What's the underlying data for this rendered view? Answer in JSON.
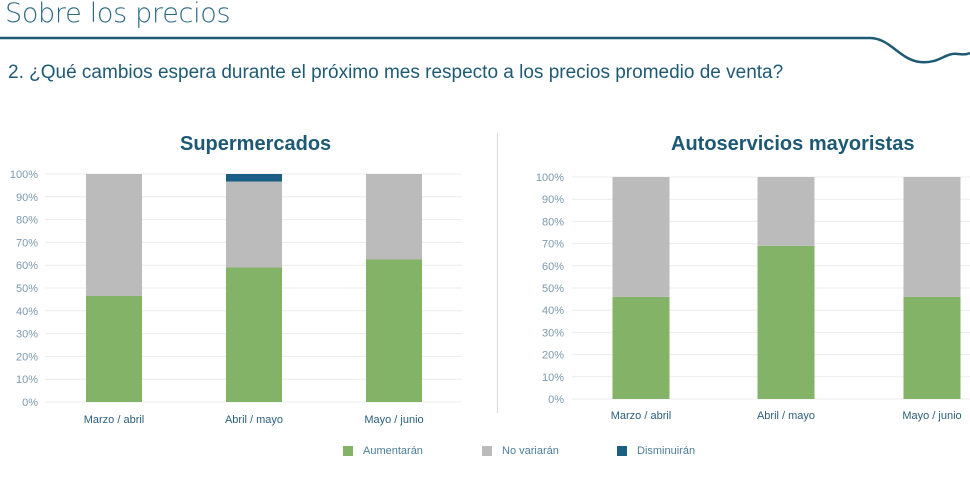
{
  "header": {
    "title": "Sobre los precios",
    "question": "2. ¿Qué cambios espera durante el próximo mes respecto a los precios promedio de venta?"
  },
  "colors": {
    "aumentaran": "#82b366",
    "no_variaran": "#bbbbbb",
    "disminuiran": "#1b5e86",
    "accent": "#1e5a73"
  },
  "legend": [
    {
      "label": "Aumentarán",
      "color": "#82b366"
    },
    {
      "label": "No variarán",
      "color": "#bbbbbb"
    },
    {
      "label": "Disminuirán",
      "color": "#1b5e86"
    }
  ],
  "chart_data": [
    {
      "type": "bar",
      "stacked": true,
      "title": "Supermercados",
      "categories": [
        "Marzo / abril",
        "Abril / mayo",
        "Mayo / junio"
      ],
      "series": [
        {
          "name": "Aumentarán",
          "values": [
            46.5,
            59,
            62.5
          ]
        },
        {
          "name": "No variarán",
          "values": [
            53.5,
            37.7,
            37.5
          ]
        },
        {
          "name": "Disminuirán",
          "values": [
            0,
            3.3,
            0
          ]
        }
      ],
      "yticks": [
        "0%",
        "10%",
        "20%",
        "30%",
        "40%",
        "50%",
        "60%",
        "70%",
        "80%",
        "90%",
        "100%"
      ],
      "ylim": [
        0,
        100
      ],
      "xlabel": "",
      "ylabel": "",
      "grid": true,
      "legend": "bottom"
    },
    {
      "type": "bar",
      "stacked": true,
      "title": "Autoservicios mayoristas",
      "categories": [
        "Marzo / abril",
        "Abril / mayo",
        "Mayo / junio"
      ],
      "series": [
        {
          "name": "Aumentarán",
          "values": [
            46,
            69,
            46
          ]
        },
        {
          "name": "No variarán",
          "values": [
            54,
            31,
            54
          ]
        },
        {
          "name": "Disminuirán",
          "values": [
            0,
            0,
            0
          ]
        }
      ],
      "yticks": [
        "0%",
        "10%",
        "20%",
        "30%",
        "40%",
        "50%",
        "60%",
        "70%",
        "80%",
        "90%",
        "100%"
      ],
      "ylim": [
        0,
        100
      ],
      "xlabel": "",
      "ylabel": "",
      "grid": true,
      "legend": "bottom"
    }
  ]
}
